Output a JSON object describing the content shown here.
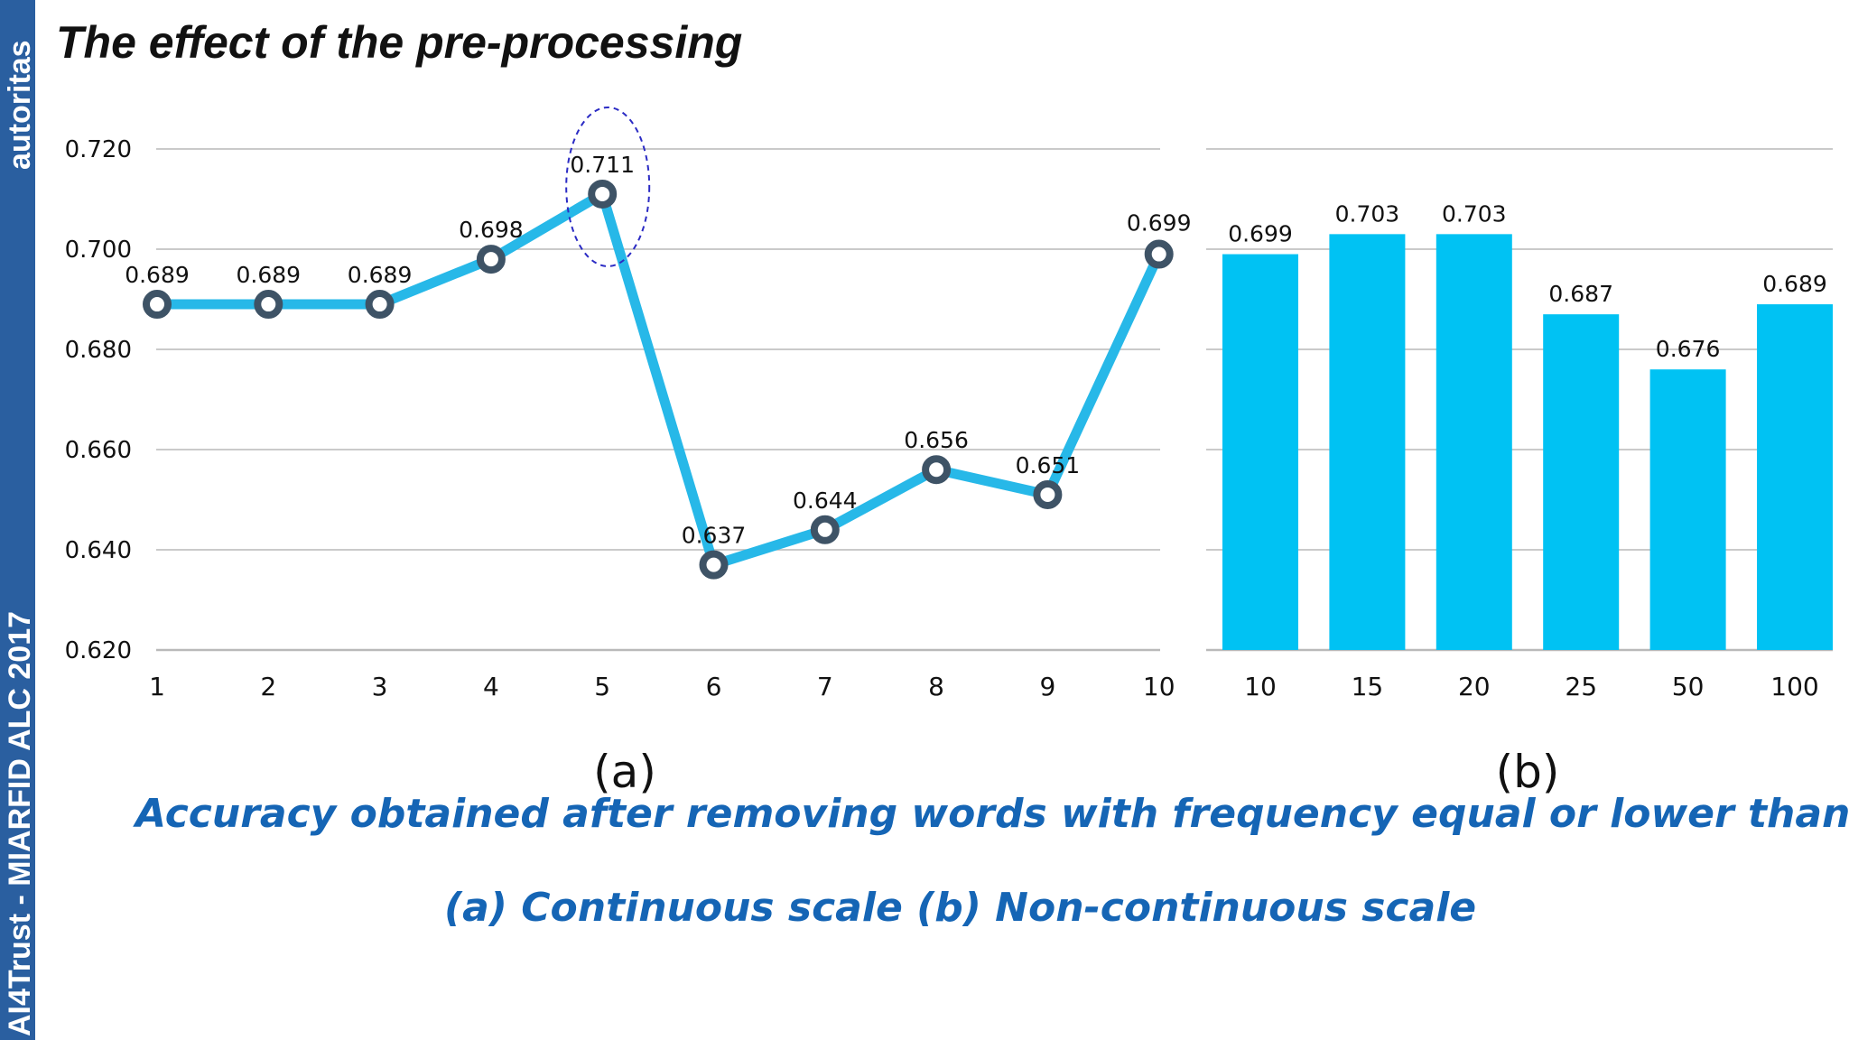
{
  "sidebar": {
    "top_text": "autoritas",
    "bottom_text": "AI4Trust - MIARFID ALC 2017"
  },
  "slide": {
    "title": "The effect of the pre-processing",
    "caption": "Accuracy obtained after removing words with frequency equal or lower than n",
    "subcaption": "(a)    Continuous scale  (b) Non-continuous scale"
  },
  "colors": {
    "line": "#27b8e8",
    "bar": "#00c2f3",
    "marker_stroke": "#3e5366",
    "grid": "#b9b9b9",
    "highlight": "#2b2bc4",
    "caption": "#1565b5"
  },
  "chart_data": [
    {
      "type": "line",
      "panel_label": "(a)",
      "x": [
        "1",
        "2",
        "3",
        "4",
        "5",
        "6",
        "7",
        "8",
        "9",
        "10"
      ],
      "values": [
        0.689,
        0.689,
        0.689,
        0.698,
        0.711,
        0.637,
        0.644,
        0.656,
        0.651,
        0.699
      ],
      "data_labels": [
        "0.689",
        "0.689",
        "0.689",
        "0.698",
        "0.711",
        "0.637",
        "0.644",
        "0.656",
        "0.651",
        "0.699"
      ],
      "ylim": [
        0.62,
        0.72
      ],
      "yticks": [
        "0.720",
        "0.700",
        "0.680",
        "0.660",
        "0.640",
        "0.620"
      ],
      "ytick_values": [
        0.72,
        0.7,
        0.68,
        0.66,
        0.64,
        0.62
      ],
      "grid": true,
      "highlighted_x": "5"
    },
    {
      "type": "bar",
      "panel_label": "(b)",
      "categories": [
        "10",
        "15",
        "20",
        "25",
        "50",
        "100"
      ],
      "values": [
        0.699,
        0.703,
        0.703,
        0.687,
        0.676,
        0.689
      ],
      "data_labels": [
        "0.699",
        "0.703",
        "0.703",
        "0.687",
        "0.676",
        "0.689"
      ],
      "ylim": [
        0.62,
        0.72
      ],
      "grid": true
    }
  ]
}
